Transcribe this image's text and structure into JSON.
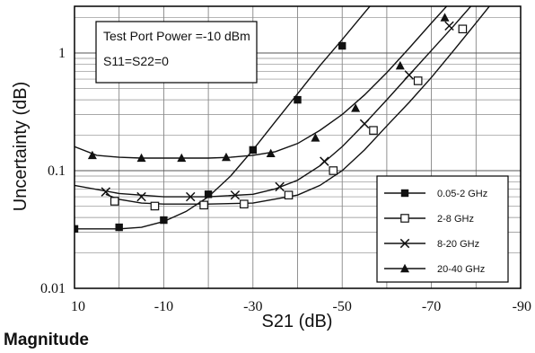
{
  "page": {
    "caption": "Magnitude"
  },
  "chart_data": {
    "type": "line",
    "xlabel": "S21 (dB)",
    "ylabel": "Uncertainty (dB)",
    "xlim": [
      10,
      -90
    ],
    "ylim": [
      0.01,
      6
    ],
    "yscale": "log",
    "x_ticks": [
      "10",
      "-10",
      "-30",
      "-50",
      "-70",
      "-90"
    ],
    "y_ticks": [
      "0.01",
      "0.1",
      "1"
    ],
    "grid": true,
    "annotation": [
      "Test Port Power =-10 dBm",
      "S11=S22=0"
    ],
    "legend_position": "bottom-right",
    "series": [
      {
        "name": "0.05-2 GHz",
        "marker": "filled-square",
        "line_x": [
          10,
          0,
          -5,
          -10,
          -15,
          -20,
          -25,
          -30,
          -35,
          -40,
          -45,
          -50,
          -55,
          -60,
          -65,
          -68
        ],
        "line_y": [
          0.032,
          0.032,
          0.033,
          0.037,
          0.045,
          0.06,
          0.09,
          0.15,
          0.26,
          0.45,
          0.78,
          1.3,
          2.2,
          3.7,
          6.0,
          8.0
        ],
        "marker_x": [
          10,
          0,
          -10,
          -20,
          -30,
          -40,
          -50,
          -60
        ],
        "marker_y": [
          0.032,
          0.033,
          0.038,
          0.063,
          0.15,
          0.4,
          1.15,
          3.0
        ]
      },
      {
        "name": "2-8 GHz",
        "marker": "open-square",
        "line_x": [
          3,
          0,
          -5,
          -10,
          -20,
          -30,
          -40,
          -45,
          -50,
          -55,
          -60,
          -65,
          -70,
          -75,
          -80,
          -85,
          -88
        ],
        "line_y": [
          0.063,
          0.057,
          0.053,
          0.052,
          0.052,
          0.053,
          0.062,
          0.075,
          0.1,
          0.15,
          0.24,
          0.38,
          0.62,
          1.05,
          1.8,
          3.1,
          4.3
        ],
        "marker_x": [
          1,
          -8,
          -19,
          -28,
          -38,
          -48,
          -57,
          -67,
          -77,
          -87
        ],
        "marker_y": [
          0.055,
          0.05,
          0.051,
          0.052,
          0.062,
          0.1,
          0.22,
          0.58,
          1.6,
          4.3
        ]
      },
      {
        "name": "8-20 GHz",
        "marker": "cross",
        "line_x": [
          10,
          0,
          -10,
          -20,
          -30,
          -35,
          -40,
          -45,
          -50,
          -55,
          -60,
          -65,
          -70,
          -75,
          -80,
          -86
        ],
        "line_y": [
          0.075,
          0.064,
          0.06,
          0.06,
          0.063,
          0.07,
          0.083,
          0.11,
          0.16,
          0.25,
          0.4,
          0.65,
          1.05,
          1.7,
          2.8,
          4.8
        ],
        "marker_x": [
          3,
          -5,
          -16,
          -26,
          -36,
          -46,
          -55,
          -65,
          -74,
          -84
        ],
        "marker_y": [
          0.066,
          0.06,
          0.06,
          0.062,
          0.073,
          0.12,
          0.25,
          0.65,
          1.7,
          4.5
        ]
      },
      {
        "name": "20-40 GHz",
        "marker": "filled-triangle",
        "line_x": [
          10,
          5,
          0,
          -5,
          -10,
          -15,
          -20,
          -25,
          -30,
          -35,
          -40,
          -45,
          -50,
          -55,
          -60,
          -65,
          -70,
          -75,
          -80,
          -85
        ],
        "line_y": [
          0.16,
          0.135,
          0.13,
          0.128,
          0.128,
          0.128,
          0.128,
          0.13,
          0.135,
          0.145,
          0.17,
          0.22,
          0.3,
          0.44,
          0.68,
          1.1,
          1.8,
          2.9,
          4.6,
          7.0
        ],
        "marker_x": [
          6,
          -5,
          -14,
          -24,
          -34,
          -44,
          -53,
          -63,
          -73,
          -82
        ],
        "marker_y": [
          0.135,
          0.128,
          0.128,
          0.13,
          0.14,
          0.19,
          0.34,
          0.78,
          2.0,
          4.8
        ]
      }
    ]
  }
}
